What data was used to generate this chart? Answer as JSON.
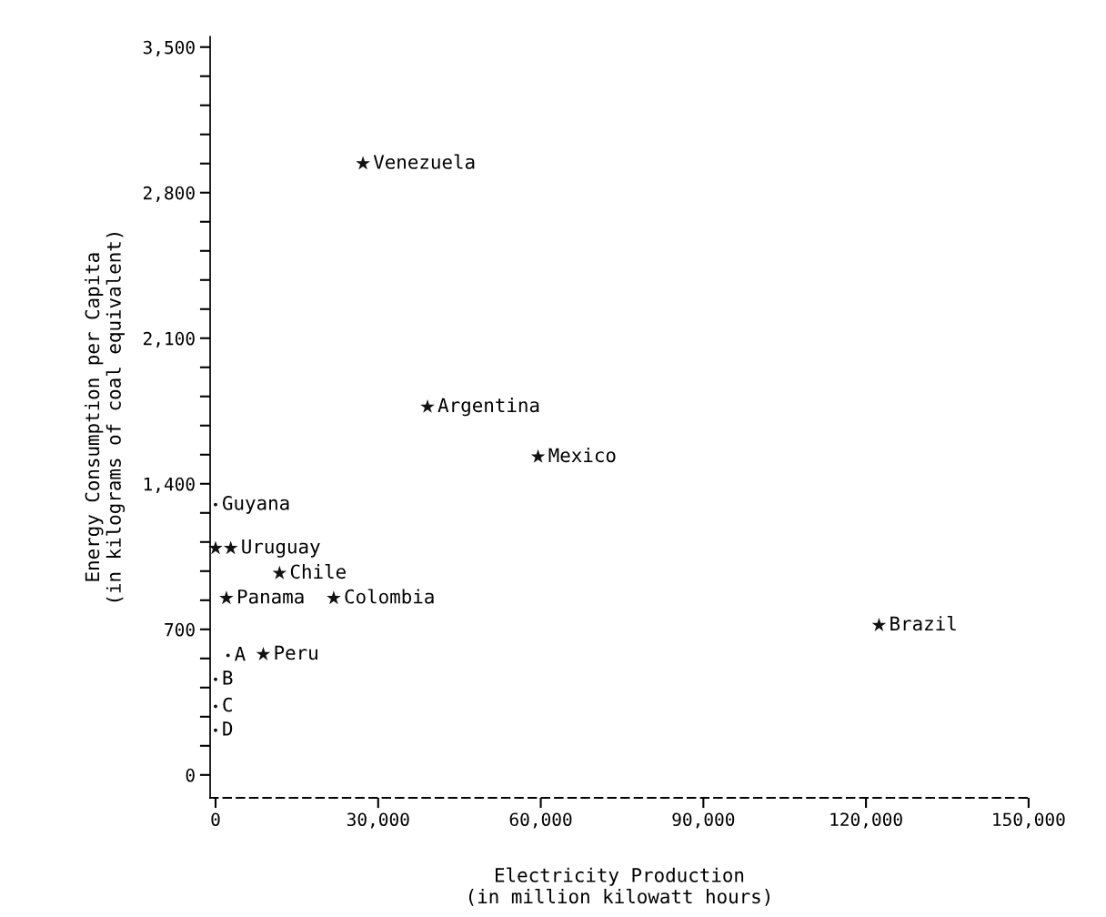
{
  "chart_data": {
    "type": "scatter",
    "xlabel": "Electricity Production\n(in million kilowatt hours)",
    "ylabel": "Energy Consumption per Capita\n(in kilograms of coal equivalent)",
    "series": [
      {
        "marker": "star",
        "color": "#111111",
        "x": [
          27200,
          39100,
          59500,
          0,
          2800,
          11800,
          2000,
          21800,
          8800,
          122400
        ],
        "values": [
          2940,
          1770,
          1530,
          1090,
          1090,
          970,
          850,
          850,
          580,
          720
        ]
      },
      {
        "marker": "circle",
        "color": "#111111",
        "x": [
          0,
          2300,
          0,
          0,
          0
        ],
        "values": [
          1300,
          575,
          460,
          330,
          215
        ]
      }
    ],
    "annotations": [
      {
        "text": "Venezuela",
        "x": 27200,
        "y": 2940
      },
      {
        "text": "Argentina",
        "x": 39100,
        "y": 1770
      },
      {
        "text": "Mexico",
        "x": 59500,
        "y": 1530
      },
      {
        "text": "Guyana",
        "x": 0,
        "y": 1300
      },
      {
        "text": "Uruguay",
        "x": 2800,
        "y": 1090
      },
      {
        "text": "Chile",
        "x": 11800,
        "y": 970
      },
      {
        "text": "Panama",
        "x": 2000,
        "y": 850
      },
      {
        "text": "Colombia",
        "x": 21800,
        "y": 850
      },
      {
        "text": "Peru",
        "x": 8800,
        "y": 580
      },
      {
        "text": "Brazil",
        "x": 122400,
        "y": 720
      },
      {
        "text": "A",
        "x": 2300,
        "y": 575
      },
      {
        "text": "B",
        "x": 0,
        "y": 460
      },
      {
        "text": "C",
        "x": 0,
        "y": 330
      },
      {
        "text": "D",
        "x": 0,
        "y": 215
      }
    ],
    "xlim": [
      -1000,
      150000
    ],
    "xticks": [
      {
        "value": 0,
        "label": "0"
      },
      {
        "value": 30000,
        "label": "30,000"
      },
      {
        "value": 60000,
        "label": "60,000"
      },
      {
        "value": 90000,
        "label": "90,000"
      },
      {
        "value": 120000,
        "label": "120,000"
      },
      {
        "value": 150000,
        "label": "150,000"
      }
    ],
    "ylim": [
      -110,
      3550
    ],
    "yticks": [
      {
        "value": 0,
        "label": "0"
      },
      {
        "value": 140,
        "label": null
      },
      {
        "value": 280,
        "label": null
      },
      {
        "value": 420,
        "label": null
      },
      {
        "value": 560,
        "label": null
      },
      {
        "value": 700,
        "label": "700"
      },
      {
        "value": 840,
        "label": null
      },
      {
        "value": 980,
        "label": null
      },
      {
        "value": 1120,
        "label": null
      },
      {
        "value": 1260,
        "label": null
      },
      {
        "value": 1400,
        "label": "1,400"
      },
      {
        "value": 1540,
        "label": null
      },
      {
        "value": 1680,
        "label": null
      },
      {
        "value": 1820,
        "label": null
      },
      {
        "value": 1960,
        "label": null
      },
      {
        "value": 2100,
        "label": "2,100"
      },
      {
        "value": 2240,
        "label": null
      },
      {
        "value": 2380,
        "label": null
      },
      {
        "value": 2520,
        "label": null
      },
      {
        "value": 2660,
        "label": null
      },
      {
        "value": 2800,
        "label": "2,800"
      },
      {
        "value": 2940,
        "label": null
      },
      {
        "value": 3080,
        "label": null
      },
      {
        "value": 3220,
        "label": null
      },
      {
        "value": 3360,
        "label": null
      },
      {
        "value": 3500,
        "label": "3,500"
      }
    ],
    "grid": false
  }
}
